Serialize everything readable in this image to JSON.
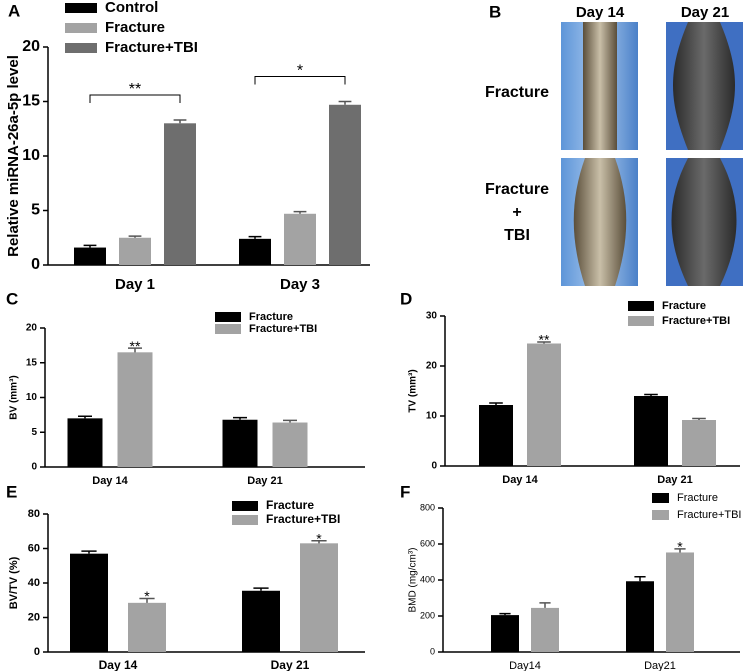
{
  "chart_data": [
    {
      "type": "bar",
      "panel_label": "A",
      "ylabel": "Relative miRNA-26a-5p level",
      "categories": [
        "Day 1",
        "Day 3"
      ],
      "series": [
        {
          "name": "Control",
          "color": "#000000",
          "values": [
            1.6,
            2.4
          ],
          "errors": [
            0.2,
            0.2
          ]
        },
        {
          "name": "Fracture",
          "color": "#a3a3a3",
          "values": [
            2.5,
            4.7
          ],
          "errors": [
            0.15,
            0.2
          ]
        },
        {
          "name": "Fracture+TBI",
          "color": "#6e6e6e",
          "values": [
            13.0,
            14.7
          ],
          "errors": [
            0.3,
            0.3
          ]
        }
      ],
      "ylim": [
        0,
        20
      ],
      "yticks": [
        0,
        5,
        10,
        15,
        20
      ],
      "annotations": [
        {
          "text": "**",
          "category": 0,
          "from_series": 0,
          "to_series": 2
        },
        {
          "text": "*",
          "category": 1,
          "from_series": 0,
          "to_series": 2
        }
      ]
    },
    {
      "type": "bar",
      "panel_label": "C",
      "ylabel": "BV (mm³)",
      "categories": [
        "Day 14",
        "Day 21"
      ],
      "series": [
        {
          "name": "Fracture",
          "color": "#000000",
          "values": [
            7.0,
            6.8
          ],
          "errors": [
            0.3,
            0.3
          ]
        },
        {
          "name": "Fracture+TBI",
          "color": "#a3a3a3",
          "values": [
            16.5,
            6.4
          ],
          "errors": [
            0.6,
            0.3
          ]
        }
      ],
      "ylim": [
        0,
        20
      ],
      "yticks": [
        0,
        5,
        10,
        15,
        20
      ],
      "annotations": [
        {
          "text": "**",
          "category": 0,
          "series": 1
        }
      ]
    },
    {
      "type": "bar",
      "panel_label": "D",
      "ylabel": "TV (mm³)",
      "categories": [
        "Day 14",
        "Day 21"
      ],
      "series": [
        {
          "name": "Fracture",
          "color": "#000000",
          "values": [
            12.2,
            14.0
          ],
          "errors": [
            0.4,
            0.3
          ]
        },
        {
          "name": "Fracture+TBI",
          "color": "#a3a3a3",
          "values": [
            24.5,
            9.2
          ],
          "errors": [
            0.3,
            0.3
          ]
        }
      ],
      "ylim": [
        0,
        30
      ],
      "yticks": [
        0,
        10,
        20,
        30
      ],
      "annotations": [
        {
          "text": "**",
          "category": 0,
          "series": 1
        }
      ]
    },
    {
      "type": "bar",
      "panel_label": "E",
      "ylabel": "BV/TV (%)",
      "categories": [
        "Day 14",
        "Day 21"
      ],
      "series": [
        {
          "name": "Fracture",
          "color": "#000000",
          "values": [
            57,
            35.5
          ],
          "errors": [
            1.5,
            1.5
          ]
        },
        {
          "name": "Fracture+TBI",
          "color": "#a3a3a3",
          "values": [
            28.5,
            63
          ],
          "errors": [
            2.5,
            1.5
          ]
        }
      ],
      "ylim": [
        0,
        80
      ],
      "yticks": [
        0,
        20,
        40,
        60,
        80
      ],
      "annotations": [
        {
          "text": "*",
          "category": 0,
          "series": 1
        },
        {
          "text": "*",
          "category": 1,
          "series": 1
        }
      ]
    },
    {
      "type": "bar",
      "panel_label": "F",
      "ylabel": "BMD (mg/cm³)",
      "categories": [
        "Day14",
        "Day21"
      ],
      "series": [
        {
          "name": "Fracture",
          "color": "#000000",
          "values": [
            205,
            393
          ],
          "errors": [
            8,
            25
          ]
        },
        {
          "name": "Fracture+TBI",
          "color": "#a3a3a3",
          "values": [
            245,
            553
          ],
          "errors": [
            28,
            20
          ]
        }
      ],
      "ylim": [
        0,
        800
      ],
      "yticks": [
        0,
        200,
        400,
        600,
        800
      ],
      "annotations": [
        {
          "text": "*",
          "category": 1,
          "series": 1
        }
      ]
    }
  ],
  "image_panel": {
    "panel_label": "B",
    "columns": [
      "Day 14",
      "Day 21"
    ],
    "rows": [
      "Fracture",
      "Fracture",
      "+",
      "TBI"
    ]
  }
}
